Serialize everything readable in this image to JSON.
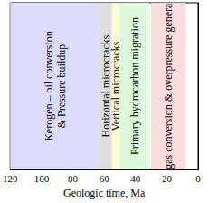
{
  "chart_data": {
    "type": "span",
    "x_label": "Geologic time, Ma",
    "xlim": [
      120,
      0
    ],
    "xticks": [
      120,
      100,
      80,
      60,
      40,
      20,
      0
    ],
    "tick_labels": "x",
    "grid": false,
    "spans": [
      {
        "start": 120,
        "end": 63,
        "label": "Kerogen – oil conversion\n& Pressure buildup",
        "color": "#dcdcfa"
      },
      {
        "start": 63,
        "end": 55,
        "label": "Horizontal microcracks",
        "color": "#dedede"
      },
      {
        "start": 55,
        "end": 50,
        "label": "Vertical microcracks",
        "color": "#fbfbd2"
      },
      {
        "start": 50,
        "end": 31,
        "label": "Primary hydrocarbon migration",
        "color": "#dcf9dc"
      },
      {
        "start": 30,
        "end": 8,
        "label": "Oil gas conversion & overpressure generation",
        "color": "#fadcdc"
      }
    ]
  }
}
